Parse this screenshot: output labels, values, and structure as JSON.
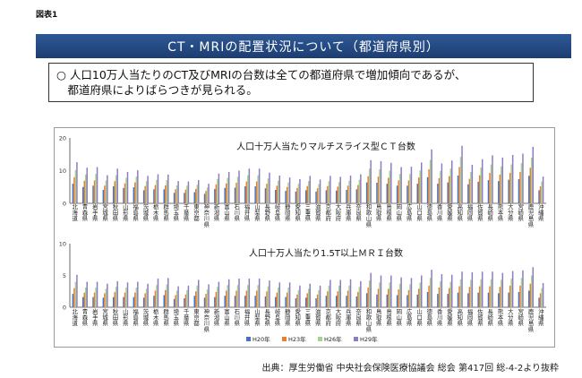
{
  "figure_label": "図表1",
  "title": "CT・MRIの配置状況について（都道府県別）",
  "summary_lines": [
    "○ 人口10万人当たりのCT及びMRIの台数は全ての都道府県で増加傾向であるが、",
    "　都道府県によりばらつきが見られる。"
  ],
  "source": "出典：厚生労働省 中央社会保険医療協議会 総会 第417回 総-4-2より抜粋",
  "colors": {
    "H20年": "#4472c4",
    "H23年": "#ed7d31",
    "H26年": "#a9d18e",
    "H29年": "#8e7cc3"
  },
  "chart_data": [
    {
      "type": "bar",
      "title": "人口十万人当たりマルチスライス型ＣＴ台数",
      "categories": [
        "北海道",
        "青森県",
        "岩手県",
        "宮城県",
        "秋田県",
        "山形県",
        "福島県",
        "茨城県",
        "栃木県",
        "群馬県",
        "埼玉県",
        "千葉県",
        "東京都",
        "神奈川県",
        "新潟県",
        "富山県",
        "石川県",
        "福井県",
        "山梨県",
        "長野県",
        "岐阜県",
        "静岡県",
        "愛知県",
        "三重県",
        "滋賀県",
        "京都府",
        "大阪府",
        "兵庫県",
        "奈良県",
        "和歌山県",
        "鳥取県",
        "島根県",
        "岡山県",
        "広島県",
        "山口県",
        "徳島県",
        "香川県",
        "愛媛県",
        "高知県",
        "福岡県",
        "佐賀県",
        "長崎県",
        "熊本県",
        "大分県",
        "宮崎県",
        "鹿児島県",
        "沖縄県"
      ],
      "ylim": [
        0,
        20
      ],
      "yticks": [
        0,
        10,
        20
      ],
      "series": [
        {
          "name": "H20年",
          "values": [
            6.0,
            5.0,
            5.4,
            4.1,
            5.2,
            4.7,
            4.9,
            4.0,
            4.3,
            4.3,
            3.2,
            3.2,
            3.4,
            2.9,
            4.4,
            4.7,
            4.8,
            5.2,
            5.2,
            4.6,
            4.1,
            3.8,
            3.6,
            4.0,
            3.6,
            4.0,
            3.9,
            4.1,
            4.3,
            6.4,
            6.3,
            6.0,
            5.4,
            5.4,
            6.0,
            8.0,
            6.0,
            6.4,
            8.5,
            5.8,
            6.6,
            7.1,
            6.8,
            7.2,
            7.4,
            8.4,
            4.0
          ]
        },
        {
          "name": "H23年",
          "values": [
            8.0,
            6.9,
            7.0,
            5.4,
            6.8,
            6.1,
            6.4,
            5.3,
            5.6,
            5.5,
            4.3,
            4.2,
            4.4,
            3.8,
            5.8,
            6.1,
            6.3,
            6.7,
            6.7,
            6.0,
            5.4,
            5.0,
            4.7,
            5.3,
            4.6,
            5.3,
            5.1,
            5.4,
            5.6,
            8.3,
            8.2,
            7.8,
            7.0,
            7.0,
            7.9,
            10.4,
            7.7,
            8.3,
            11.1,
            7.5,
            8.6,
            9.3,
            8.8,
            9.3,
            9.6,
            10.9,
            5.2
          ]
        },
        {
          "name": "H26年",
          "values": [
            10.2,
            8.8,
            9.0,
            7.0,
            8.6,
            7.8,
            8.2,
            6.8,
            7.2,
            7.1,
            5.5,
            5.4,
            5.7,
            4.8,
            7.4,
            7.8,
            8.1,
            8.6,
            8.6,
            7.6,
            6.9,
            6.4,
            6.0,
            6.8,
            5.9,
            6.8,
            6.5,
            6.9,
            7.2,
            10.6,
            10.4,
            10.0,
            9.0,
            9.0,
            10.1,
            13.3,
            9.9,
            10.6,
            14.2,
            9.6,
            11.0,
            11.9,
            11.3,
            11.9,
            12.3,
            14.0,
            6.7
          ]
        },
        {
          "name": "H29年",
          "values": [
            12.6,
            10.9,
            11.1,
            8.6,
            10.6,
            9.6,
            10.1,
            8.4,
            8.9,
            8.8,
            6.8,
            6.7,
            7.1,
            6.0,
            9.1,
            9.6,
            10.0,
            10.6,
            10.6,
            9.4,
            8.5,
            7.9,
            7.4,
            8.4,
            7.3,
            8.4,
            8.1,
            8.5,
            8.9,
            13.2,
            12.9,
            12.4,
            11.1,
            11.2,
            12.5,
            16.5,
            12.2,
            13.1,
            17.6,
            11.8,
            13.5,
            14.7,
            14.0,
            14.8,
            15.2,
            17.3,
            8.2
          ]
        }
      ]
    },
    {
      "type": "bar",
      "title": "人口十万人当たり1.5T以上ＭＲＩ台数",
      "categories": [
        "北海道",
        "青森県",
        "岩手県",
        "宮城県",
        "秋田県",
        "山形県",
        "福島県",
        "茨城県",
        "栃木県",
        "群馬県",
        "埼玉県",
        "千葉県",
        "東京都",
        "神奈川県",
        "新潟県",
        "富山県",
        "石川県",
        "福井県",
        "山梨県",
        "長野県",
        "岐阜県",
        "静岡県",
        "愛知県",
        "三重県",
        "滋賀県",
        "京都府",
        "大阪府",
        "兵庫県",
        "奈良県",
        "和歌山県",
        "鳥取県",
        "島根県",
        "岡山県",
        "広島県",
        "山口県",
        "徳島県",
        "香川県",
        "愛媛県",
        "高知県",
        "福岡県",
        "佐賀県",
        "長崎県",
        "熊本県",
        "大分県",
        "宮崎県",
        "鹿児島県",
        "沖縄県"
      ],
      "ylim": [
        0,
        10
      ],
      "yticks": [
        0,
        5,
        10
      ],
      "series": [
        {
          "name": "H20年",
          "values": [
            2.1,
            1.6,
            1.6,
            1.5,
            1.6,
            1.6,
            1.6,
            1.5,
            1.8,
            1.9,
            1.3,
            1.4,
            1.8,
            1.5,
            1.6,
            1.8,
            1.8,
            1.8,
            1.8,
            1.7,
            1.6,
            1.6,
            1.4,
            1.5,
            1.4,
            1.8,
            1.8,
            1.8,
            1.7,
            2.2,
            2.0,
            2.0,
            1.9,
            1.9,
            2.0,
            2.4,
            2.1,
            2.1,
            2.3,
            2.2,
            2.3,
            2.3,
            2.2,
            2.3,
            2.4,
            2.6,
            1.5
          ]
        },
        {
          "name": "H23年",
          "values": [
            3.0,
            2.3,
            2.3,
            2.2,
            2.4,
            2.3,
            2.3,
            2.2,
            2.6,
            2.7,
            1.9,
            2.0,
            2.5,
            2.1,
            2.4,
            2.6,
            2.6,
            2.6,
            2.6,
            2.5,
            2.3,
            2.3,
            2.0,
            2.2,
            2.0,
            2.5,
            2.5,
            2.6,
            2.4,
            3.1,
            2.9,
            2.9,
            2.8,
            2.7,
            2.9,
            3.4,
            3.1,
            3.0,
            3.3,
            3.2,
            3.3,
            3.3,
            3.2,
            3.4,
            3.4,
            3.7,
            2.2
          ]
        },
        {
          "name": "H26年",
          "values": [
            4.0,
            3.1,
            3.1,
            2.9,
            3.2,
            3.1,
            3.1,
            2.9,
            3.5,
            3.6,
            2.6,
            2.7,
            3.4,
            2.8,
            3.2,
            3.5,
            3.5,
            3.5,
            3.5,
            3.3,
            3.1,
            3.1,
            2.7,
            2.9,
            2.7,
            3.4,
            3.4,
            3.4,
            3.2,
            4.2,
            3.9,
            3.9,
            3.7,
            3.6,
            3.9,
            4.6,
            4.1,
            4.0,
            4.4,
            4.3,
            4.4,
            4.4,
            4.3,
            4.5,
            4.6,
            5.0,
            3.0
          ]
        },
        {
          "name": "H29年",
          "values": [
            5.1,
            4.0,
            4.0,
            3.7,
            4.1,
            3.9,
            4.0,
            3.7,
            4.5,
            4.6,
            3.3,
            3.4,
            4.3,
            3.6,
            4.0,
            4.4,
            4.5,
            4.5,
            4.5,
            4.2,
            3.9,
            3.9,
            3.4,
            3.7,
            3.4,
            4.3,
            4.3,
            4.4,
            4.1,
            5.4,
            5.0,
            5.0,
            4.7,
            4.6,
            5.0,
            5.9,
            5.2,
            5.1,
            5.6,
            5.5,
            5.6,
            5.6,
            5.4,
            5.7,
            5.8,
            6.3,
            3.8
          ]
        }
      ]
    }
  ]
}
